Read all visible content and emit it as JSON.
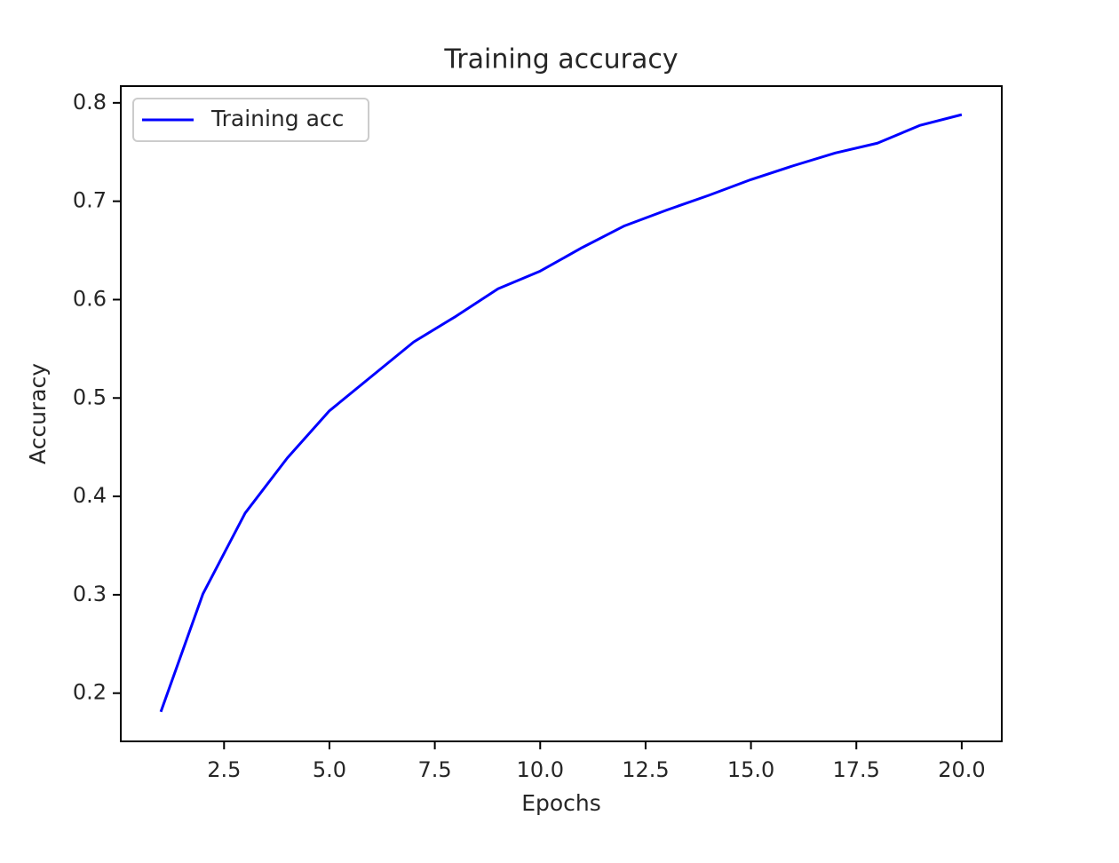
{
  "chart_data": {
    "type": "line",
    "title": "Training accuracy",
    "x_label": "Epochs",
    "y_label": "Accuracy",
    "x": [
      1,
      2,
      3,
      4,
      5,
      6,
      7,
      8,
      9,
      10,
      11,
      12,
      13,
      14,
      15,
      16,
      17,
      18,
      19,
      20
    ],
    "series": [
      {
        "name": "Training acc",
        "color": "#0000ff",
        "values": [
          0.181,
          0.301,
          0.383,
          0.439,
          0.487,
          0.522,
          0.557,
          0.583,
          0.611,
          0.629,
          0.653,
          0.675,
          0.691,
          0.706,
          0.722,
          0.736,
          0.749,
          0.759,
          0.777,
          0.788
        ]
      }
    ],
    "xlim": [
      0.05,
      20.95
    ],
    "xticks": [
      2.5,
      {
        "value": 5,
        "label": "5.0"
      },
      7.5,
      {
        "value": 10,
        "label": "10.0"
      },
      12.5,
      {
        "value": 15,
        "label": "15.0"
      },
      17.5,
      {
        "value": 20,
        "label": "20.0"
      }
    ],
    "ylim": [
      0.151,
      0.817
    ],
    "yticks": [
      0.2,
      0.3,
      0.4,
      0.5,
      0.6,
      0.7,
      0.8
    ],
    "grid": false,
    "legend": "upper left"
  }
}
